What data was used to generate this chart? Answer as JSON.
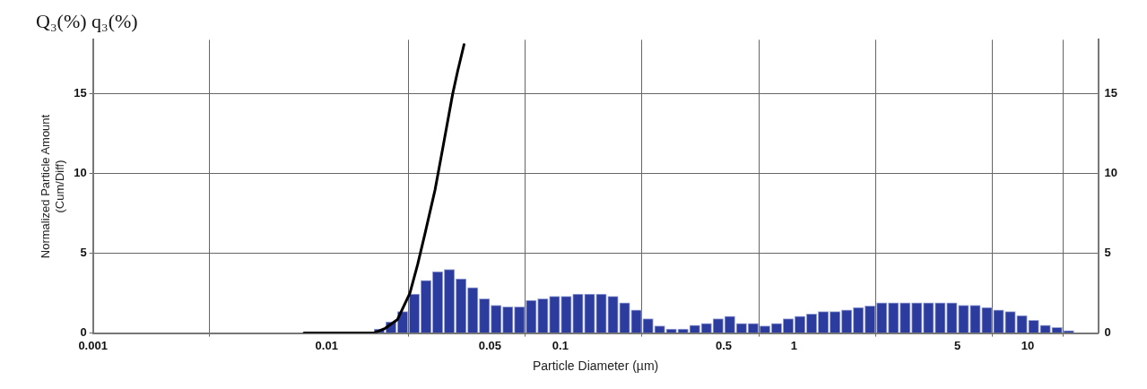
{
  "chart_data": {
    "type": "histogram",
    "title": "Q₃(%) q₃(%)",
    "xlabel": "Particle Diameter (µm)",
    "ylabel": "Normalized Particle Amount\n(Cum/Diff)",
    "log": "x",
    "bins": [
      0.01585,
      0.01778,
      0.01995,
      0.02239,
      0.02512,
      0.02818,
      0.03162,
      0.03548,
      0.03981,
      0.04467,
      0.05012,
      0.05623,
      0.0631,
      0.07079,
      0.07943,
      0.08913,
      0.1,
      0.1122,
      0.1259,
      0.1413,
      0.1585,
      0.1778,
      0.1995,
      0.2239,
      0.2512,
      0.2818,
      0.3162,
      0.3548,
      0.3981,
      0.4467,
      0.5012,
      0.5623,
      0.631,
      0.7079,
      0.7943,
      0.8913,
      1,
      1.122,
      1.259,
      1.413,
      1.585,
      1.778,
      1.995,
      2.239,
      2.512,
      2.818,
      3.162,
      3.548,
      3.981,
      4.467,
      5.012,
      5.623,
      6.31,
      7.079,
      7.943,
      8.913,
      10,
      11.22,
      12.59,
      14.13,
      15.85
    ],
    "values": [
      0.25,
      0.7,
      1.35,
      2.45,
      3.3,
      3.85,
      4.0,
      3.4,
      2.85,
      2.15,
      1.75,
      1.65,
      1.65,
      2.05,
      2.15,
      2.3,
      2.3,
      2.45,
      2.45,
      2.45,
      2.3,
      1.9,
      1.45,
      0.9,
      0.45,
      0.25,
      0.25,
      0.5,
      0.6,
      0.9,
      1.05,
      0.6,
      0.6,
      0.45,
      0.6,
      0.9,
      1.05,
      1.2,
      1.35,
      1.35,
      1.45,
      1.6,
      1.7,
      1.9,
      1.9,
      1.9,
      1.9,
      1.9,
      1.9,
      1.9,
      1.75,
      1.75,
      1.6,
      1.45,
      1.35,
      1.1,
      0.8,
      0.5,
      0.35,
      0.15
    ],
    "color": "#2b3c9e",
    "series": [
      {
        "type": "line",
        "color": "#000000",
        "x": [
          0.008,
          0.0159,
          0.0178,
          0.0201,
          0.0227,
          0.0245,
          0.0264,
          0.0291,
          0.0313,
          0.0346,
          0.0363,
          0.0387
        ],
        "values": [
          0,
          0,
          0.3,
          0.85,
          2.5,
          4.3,
          6.3,
          9.0,
          11.5,
          15.0,
          16.4,
          18.1
        ]
      }
    ],
    "xlim": [
      0.001,
      20
    ],
    "xticks": [
      0.001,
      0.01,
      0.05,
      0.1,
      0.5,
      1,
      5,
      10
    ],
    "ylim": [
      0,
      18.4
    ],
    "yticks": [
      0,
      5,
      10,
      15
    ],
    "y2lim": [
      0,
      18.4
    ],
    "y2ticks": [
      0,
      5,
      10,
      15
    ],
    "grid": true,
    "legend": false
  }
}
